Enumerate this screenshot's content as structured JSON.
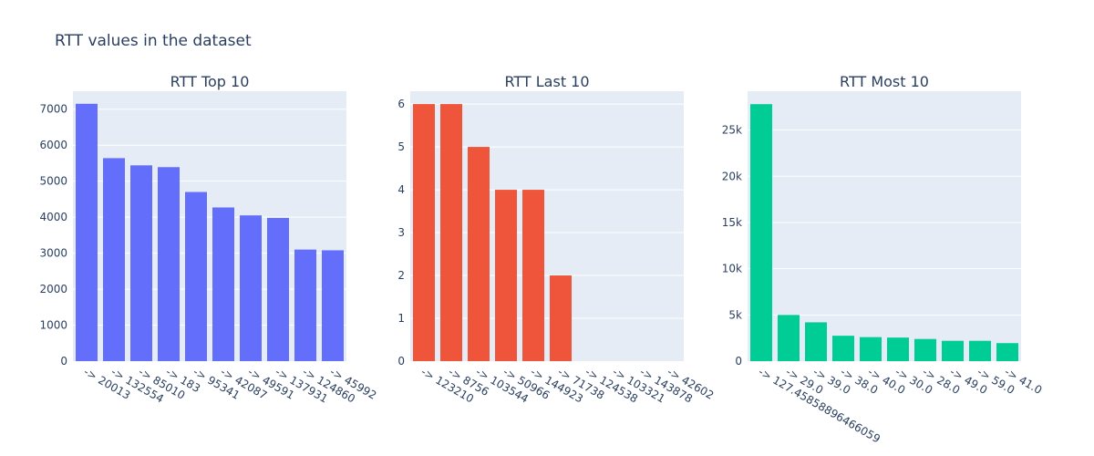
{
  "figure_title": "RTT values in the dataset",
  "chart_data": [
    {
      "type": "bar",
      "title": "RTT Top 10",
      "color": "#636efa",
      "categories": [
        "-> 20013",
        "-> 132554",
        "-> 85010",
        "-> 183",
        "-> 95341",
        "-> 42087",
        "-> 49591",
        "-> 137931",
        "-> 124860",
        "-> 45992"
      ],
      "values": [
        7150,
        5640,
        5440,
        5390,
        4700,
        4270,
        4050,
        3980,
        3100,
        3080
      ],
      "ylim": [
        0,
        7500
      ],
      "yticks": [
        0,
        1000,
        2000,
        3000,
        4000,
        5000,
        6000,
        7000
      ],
      "ytick_labels": [
        "0",
        "1000",
        "2000",
        "3000",
        "4000",
        "5000",
        "6000",
        "7000"
      ],
      "grid": true
    },
    {
      "type": "bar",
      "title": "RTT Last 10",
      "color": "#ef553b",
      "categories": [
        "-> 123210",
        "-> 8756",
        "-> 103544",
        "-> 50966",
        "-> 144923",
        "-> 71738",
        "-> 124538",
        "-> 103321",
        "-> 143878",
        "-> 42602"
      ],
      "values": [
        6,
        6,
        5,
        4,
        4,
        2,
        0,
        0,
        0,
        0
      ],
      "ylim": [
        0,
        6.3
      ],
      "yticks": [
        0,
        1,
        2,
        3,
        4,
        5,
        6
      ],
      "ytick_labels": [
        "0",
        "1",
        "2",
        "3",
        "4",
        "5",
        "6"
      ],
      "grid": true
    },
    {
      "type": "bar",
      "title": "RTT Most 10",
      "color": "#00cc96",
      "categories": [
        "-> 127.45858896466059",
        "-> 29.0",
        "-> 39.0",
        "-> 38.0",
        "-> 40.0",
        "-> 30.0",
        "-> 28.0",
        "-> 49.0",
        "-> 59.0",
        "-> 41.0"
      ],
      "values": [
        27800,
        5000,
        4200,
        2750,
        2600,
        2550,
        2400,
        2200,
        2200,
        1950
      ],
      "ylim": [
        0,
        29200
      ],
      "yticks": [
        0,
        5000,
        10000,
        15000,
        20000,
        25000
      ],
      "ytick_labels": [
        "0",
        "5k",
        "10k",
        "15k",
        "20k",
        "25k"
      ],
      "grid": true
    }
  ]
}
